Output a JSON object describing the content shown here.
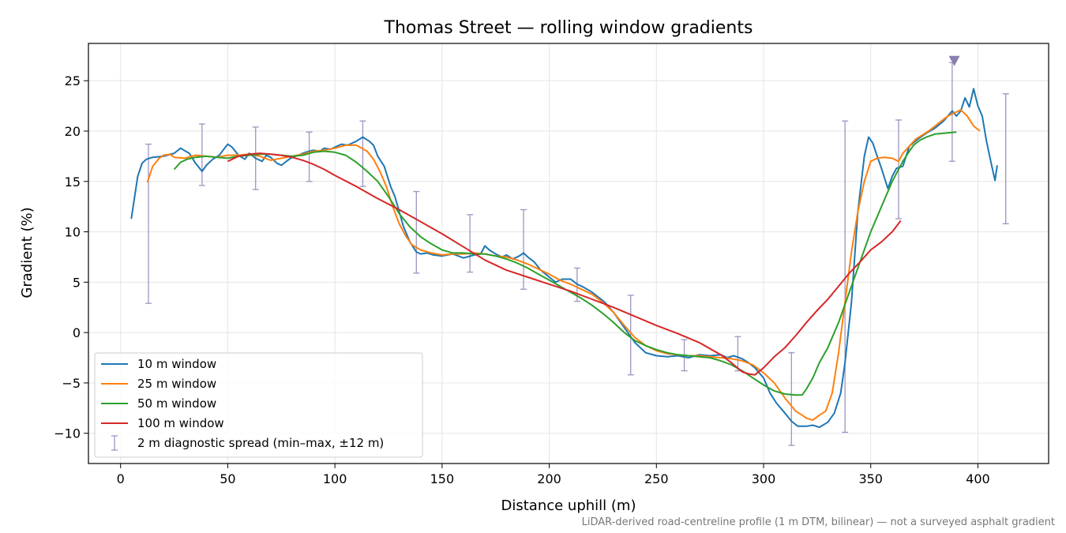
{
  "chart_data": {
    "type": "line",
    "title": "Thomas Street — rolling window gradients",
    "xlabel": "Distance uphill (m)",
    "ylabel": "Gradient (%)",
    "xlim": [
      -15,
      433
    ],
    "ylim": [
      -13,
      28.7
    ],
    "xticks": [
      0,
      50,
      100,
      150,
      200,
      250,
      300,
      350,
      400
    ],
    "yticks": [
      -10,
      -5,
      0,
      5,
      10,
      15,
      20,
      25
    ],
    "xtick_labels": [
      "0",
      "50",
      "100",
      "150",
      "200",
      "250",
      "300",
      "350",
      "400"
    ],
    "ytick_labels": [
      "−10",
      "−5",
      "0",
      "5",
      "10",
      "15",
      "20",
      "25"
    ],
    "grid": true,
    "legend_position": "lower-left",
    "footnote": "LiDAR-derived road-centreline profile (1 m DTM, bilinear) — not a surveyed asphalt gradient",
    "series": [
      {
        "name": "10 m window",
        "color": "#1f77b4",
        "x": [
          5,
          8,
          10,
          12,
          15,
          20,
          25,
          28,
          32,
          35,
          38,
          40,
          43,
          46,
          50,
          52,
          55,
          58,
          60,
          63,
          66,
          68,
          70,
          73,
          75,
          78,
          80,
          83,
          85,
          88,
          90,
          93,
          95,
          98,
          100,
          103,
          106,
          110,
          113,
          116,
          118,
          120,
          123,
          126,
          128,
          130,
          132,
          135,
          138,
          140,
          143,
          146,
          150,
          155,
          160,
          165,
          168,
          170,
          172,
          175,
          178,
          180,
          183,
          186,
          188,
          190,
          193,
          196,
          200,
          203,
          206,
          210,
          213,
          216,
          220,
          223,
          226,
          230,
          235,
          240,
          245,
          250,
          255,
          260,
          265,
          270,
          275,
          280,
          283,
          286,
          290,
          293,
          296,
          300,
          303,
          306,
          310,
          313,
          316,
          320,
          323,
          326,
          330,
          333,
          336,
          338,
          341,
          344,
          347,
          349,
          351,
          353,
          355,
          358,
          360,
          362,
          365,
          368,
          372,
          376,
          380,
          384,
          388,
          390,
          392,
          394,
          396,
          398,
          400,
          402,
          404,
          406,
          408,
          409
        ],
        "y": [
          11.3,
          15.5,
          16.8,
          17.2,
          17.4,
          17.5,
          17.8,
          18.3,
          17.8,
          16.8,
          16.0,
          16.6,
          17.2,
          17.6,
          18.7,
          18.4,
          17.6,
          17.2,
          17.8,
          17.3,
          17.0,
          17.6,
          17.4,
          16.8,
          16.6,
          17.1,
          17.4,
          17.6,
          17.8,
          18.0,
          18.1,
          18.0,
          18.3,
          18.2,
          18.4,
          18.7,
          18.6,
          19.0,
          19.4,
          19.0,
          18.6,
          17.5,
          16.5,
          14.5,
          13.5,
          12.0,
          10.5,
          9.0,
          8.0,
          7.8,
          7.9,
          7.7,
          7.6,
          7.8,
          7.4,
          7.7,
          7.8,
          8.6,
          8.2,
          7.8,
          7.5,
          7.7,
          7.3,
          7.6,
          7.9,
          7.5,
          7.0,
          6.2,
          5.5,
          5.0,
          5.3,
          5.3,
          4.8,
          4.5,
          4.0,
          3.5,
          3.0,
          2.0,
          0.5,
          -1.0,
          -2.0,
          -2.3,
          -2.4,
          -2.3,
          -2.5,
          -2.2,
          -2.3,
          -2.2,
          -2.5,
          -2.3,
          -2.6,
          -3.0,
          -3.5,
          -4.5,
          -6.0,
          -7.0,
          -8.0,
          -8.8,
          -9.3,
          -9.3,
          -9.2,
          -9.4,
          -8.9,
          -8.0,
          -6.0,
          -3.0,
          3.0,
          12.0,
          17.5,
          19.4,
          18.8,
          17.5,
          16.3,
          14.3,
          15.5,
          16.3,
          16.5,
          18.5,
          19.2,
          19.8,
          20.3,
          21.0,
          22.0,
          21.5,
          22.0,
          23.3,
          22.4,
          24.2,
          22.5,
          21.5,
          19.0,
          17.0,
          15.1,
          16.6
        ]
      },
      {
        "name": "25 m window",
        "color": "#ff7f0e",
        "x": [
          12.5,
          15,
          18,
          20,
          23,
          25,
          30,
          35,
          40,
          45,
          50,
          55,
          60,
          65,
          70,
          75,
          80,
          85,
          90,
          95,
          100,
          105,
          110,
          115,
          118,
          121,
          124,
          127,
          130,
          133,
          136,
          140,
          145,
          150,
          155,
          160,
          165,
          170,
          175,
          180,
          185,
          190,
          195,
          200,
          205,
          210,
          215,
          220,
          225,
          230,
          235,
          240,
          245,
          250,
          255,
          260,
          265,
          270,
          275,
          280,
          285,
          290,
          295,
          300,
          305,
          310,
          315,
          318,
          320,
          323,
          326,
          329,
          332,
          335,
          338,
          341,
          344,
          347,
          350,
          353,
          356,
          360,
          363,
          365,
          368,
          371,
          374,
          377,
          380,
          383,
          386,
          389,
          392,
          395,
          398,
          401
        ],
        "y": [
          14.9,
          16.5,
          17.3,
          17.6,
          17.7,
          17.4,
          17.3,
          17.6,
          17.5,
          17.4,
          17.6,
          17.6,
          17.7,
          17.5,
          17.1,
          17.3,
          17.5,
          17.7,
          18.0,
          18.1,
          18.3,
          18.6,
          18.6,
          18.0,
          17.2,
          16.0,
          14.5,
          12.5,
          10.8,
          9.6,
          8.7,
          8.2,
          7.9,
          7.7,
          7.8,
          7.8,
          7.9,
          7.8,
          7.6,
          7.5,
          7.2,
          6.8,
          6.3,
          5.8,
          5.2,
          4.8,
          4.3,
          3.8,
          3.0,
          2.0,
          0.7,
          -0.5,
          -1.3,
          -1.8,
          -2.1,
          -2.2,
          -2.3,
          -2.3,
          -2.4,
          -2.5,
          -2.6,
          -2.8,
          -3.2,
          -4.0,
          -5.0,
          -6.5,
          -7.8,
          -8.2,
          -8.5,
          -8.7,
          -8.2,
          -7.8,
          -6.0,
          -2.0,
          3.0,
          8.0,
          12.0,
          15.0,
          17.0,
          17.3,
          17.4,
          17.3,
          17.0,
          17.8,
          18.5,
          19.2,
          19.6,
          20.0,
          20.5,
          21.0,
          21.5,
          21.8,
          22.1,
          21.5,
          20.5,
          20.0
        ]
      },
      {
        "name": "50 m window",
        "color": "#2ca02c",
        "x": [
          25,
          28,
          31,
          35,
          40,
          45,
          50,
          55,
          60,
          65,
          70,
          75,
          80,
          85,
          90,
          95,
          100,
          105,
          110,
          115,
          120,
          125,
          130,
          135,
          140,
          145,
          150,
          155,
          160,
          165,
          170,
          175,
          180,
          185,
          190,
          195,
          200,
          205,
          210,
          215,
          220,
          225,
          230,
          235,
          240,
          245,
          250,
          255,
          260,
          265,
          270,
          275,
          280,
          285,
          290,
          295,
          300,
          305,
          310,
          315,
          318,
          320,
          323,
          326,
          330,
          335,
          340,
          345,
          350,
          355,
          360,
          365,
          368,
          370,
          373,
          376,
          380,
          385,
          390
        ],
        "y": [
          16.2,
          16.9,
          17.2,
          17.4,
          17.5,
          17.4,
          17.3,
          17.5,
          17.6,
          17.7,
          17.7,
          17.6,
          17.5,
          17.6,
          17.9,
          18.0,
          17.9,
          17.6,
          16.9,
          16.0,
          15.0,
          13.5,
          11.8,
          10.5,
          9.5,
          8.8,
          8.2,
          7.9,
          7.9,
          7.8,
          7.8,
          7.6,
          7.3,
          6.9,
          6.4,
          5.8,
          5.2,
          4.6,
          4.0,
          3.4,
          2.7,
          1.9,
          1.0,
          0.0,
          -0.8,
          -1.3,
          -1.7,
          -2.0,
          -2.2,
          -2.3,
          -2.4,
          -2.5,
          -2.8,
          -3.2,
          -3.8,
          -4.5,
          -5.2,
          -5.8,
          -6.1,
          -6.2,
          -6.2,
          -5.6,
          -4.5,
          -3.0,
          -1.5,
          1.0,
          4.0,
          7.0,
          10.0,
          12.5,
          15.0,
          17.0,
          18.0,
          18.6,
          19.1,
          19.4,
          19.7,
          19.8,
          19.9
        ]
      },
      {
        "name": "100 m window",
        "color": "#d62728",
        "x": [
          50,
          55,
          60,
          65,
          70,
          75,
          80,
          85,
          90,
          95,
          100,
          110,
          120,
          130,
          140,
          150,
          160,
          170,
          180,
          190,
          200,
          210,
          220,
          230,
          240,
          250,
          260,
          270,
          280,
          285,
          290,
          293,
          296,
          300,
          305,
          310,
          315,
          320,
          325,
          330,
          335,
          340,
          345,
          350,
          355,
          360,
          364
        ],
        "y": [
          17.0,
          17.5,
          17.7,
          17.8,
          17.7,
          17.6,
          17.4,
          17.1,
          16.7,
          16.2,
          15.6,
          14.5,
          13.3,
          12.2,
          11.0,
          9.8,
          8.5,
          7.2,
          6.2,
          5.5,
          4.8,
          4.1,
          3.3,
          2.5,
          1.6,
          0.7,
          -0.1,
          -1.0,
          -2.2,
          -3.0,
          -3.9,
          -4.1,
          -4.2,
          -3.5,
          -2.4,
          -1.5,
          -0.3,
          1.0,
          2.2,
          3.3,
          4.6,
          5.9,
          7.0,
          8.2,
          9.0,
          10.0,
          11.1
        ]
      }
    ],
    "error_bars": {
      "name": "2 m diagnostic spread (min–max, ±12 m)",
      "color": "#9e94c0",
      "points": [
        {
          "x": 13,
          "low": 2.9,
          "high": 18.7
        },
        {
          "x": 38,
          "low": 14.6,
          "high": 20.7
        },
        {
          "x": 63,
          "low": 14.2,
          "high": 20.4
        },
        {
          "x": 88,
          "low": 15.0,
          "high": 19.9
        },
        {
          "x": 113,
          "low": 14.5,
          "high": 21.0
        },
        {
          "x": 138,
          "low": 5.9,
          "high": 14.0
        },
        {
          "x": 163,
          "low": 6.0,
          "high": 11.7
        },
        {
          "x": 188,
          "low": 4.3,
          "high": 12.2
        },
        {
          "x": 213,
          "low": 3.1,
          "high": 6.4
        },
        {
          "x": 238,
          "low": -4.2,
          "high": 3.7
        },
        {
          "x": 263,
          "low": -3.8,
          "high": -0.7
        },
        {
          "x": 288,
          "low": -3.8,
          "high": -0.4
        },
        {
          "x": 313,
          "low": -11.2,
          "high": -2.0
        },
        {
          "x": 338,
          "low": -9.9,
          "high": 21.0
        },
        {
          "x": 363,
          "low": 11.3,
          "high": 21.1
        },
        {
          "x": 388,
          "low": 17.0,
          "high": 26.8
        },
        {
          "x": 413,
          "low": 10.8,
          "high": 23.7
        }
      ]
    },
    "marker": {
      "x": 389,
      "y": 27.0,
      "shape": "triangle-down",
      "color": "#8b7fb0"
    }
  }
}
